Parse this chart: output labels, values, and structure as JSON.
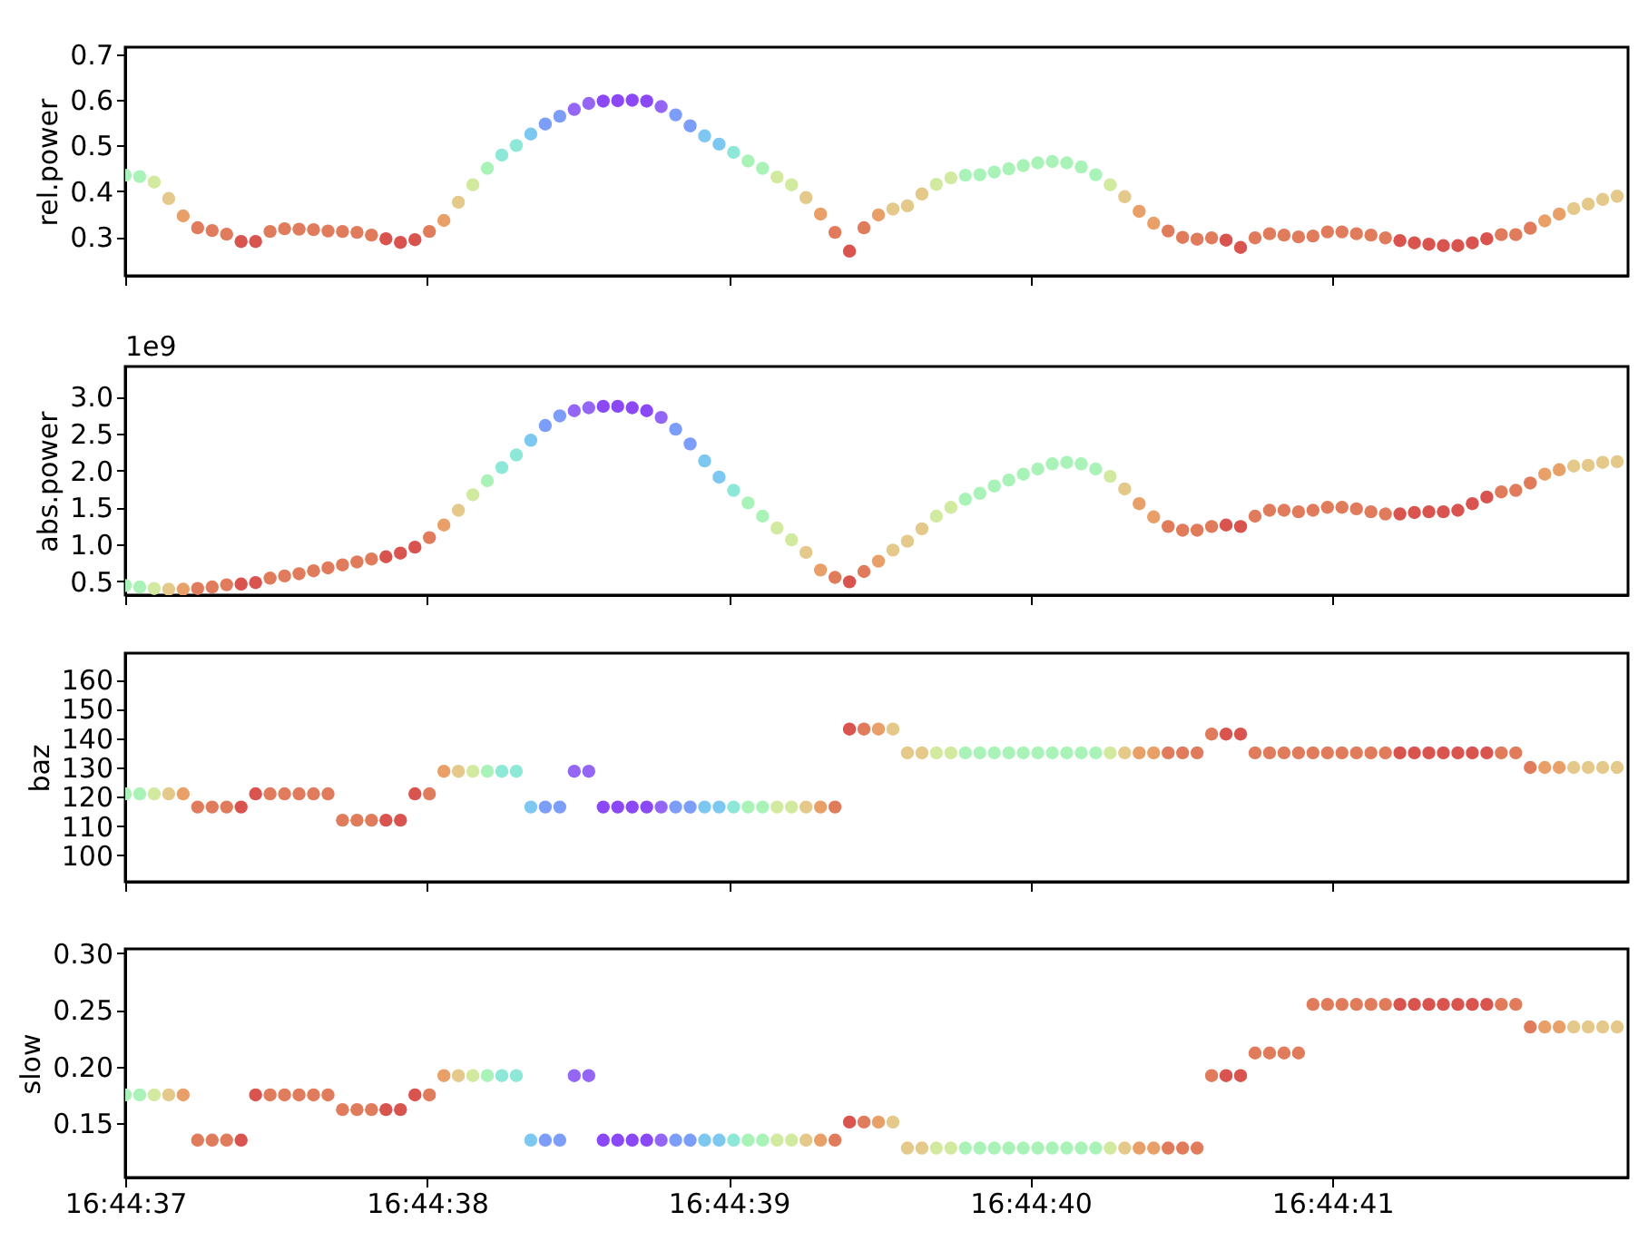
{
  "chart_data": [
    {
      "type": "scatter",
      "ylabel": "rel.power",
      "marker": "circle",
      "tick_labels": "y",
      "xlim": [
        60277,
        60281.98
      ],
      "xticks": [
        {
          "value": 60277,
          "label": null
        },
        {
          "value": 60278,
          "label": null
        },
        {
          "value": 60279,
          "label": null
        },
        {
          "value": 60280,
          "label": null
        },
        {
          "value": 60281,
          "label": null
        }
      ],
      "ylim": [
        0.215,
        0.715
      ],
      "yticks": [
        0.3,
        0.4,
        0.5,
        0.6,
        0.7
      ],
      "x": [
        60277,
        60277.048,
        60277.096,
        60277.144,
        60277.192,
        60277.24,
        60277.288,
        60277.336,
        60277.384,
        60277.432,
        60277.48,
        60277.528,
        60277.576,
        60277.624,
        60277.672,
        60277.72,
        60277.768,
        60277.816,
        60277.864,
        60277.912,
        60277.96,
        60278.008,
        60278.056,
        60278.104,
        60278.152,
        60278.2,
        60278.248,
        60278.296,
        60278.344,
        60278.392,
        60278.44,
        60278.488,
        60278.536,
        60278.584,
        60278.632,
        60278.68,
        60278.728,
        60278.776,
        60278.824,
        60278.872,
        60278.92,
        60278.968,
        60279.016,
        60279.064,
        60279.112,
        60279.16,
        60279.208,
        60279.256,
        60279.304,
        60279.352,
        60279.4,
        60279.448,
        60279.496,
        60279.544,
        60279.592,
        60279.64,
        60279.688,
        60279.736,
        60279.784,
        60279.832,
        60279.88,
        60279.928,
        60279.976,
        60280.024,
        60280.072,
        60280.12,
        60280.168,
        60280.216,
        60280.264,
        60280.312,
        60280.36,
        60280.408,
        60280.456,
        60280.504,
        60280.552,
        60280.6,
        60280.648,
        60280.696,
        60280.744,
        60280.792,
        60280.84,
        60280.888,
        60280.936,
        60280.984,
        60281.032,
        60281.08,
        60281.128,
        60281.176,
        60281.224,
        60281.272,
        60281.32,
        60281.368,
        60281.416,
        60281.464,
        60281.512,
        60281.56,
        60281.608,
        60281.656,
        60281.704,
        60281.752,
        60281.8,
        60281.848,
        60281.896,
        60281.944
      ],
      "series": [
        {
          "values": [
            0.435,
            0.432,
            0.42,
            0.384,
            0.346,
            0.32,
            0.314,
            0.306,
            0.29,
            0.29,
            0.312,
            0.318,
            0.317,
            0.316,
            0.313,
            0.312,
            0.31,
            0.304,
            0.296,
            0.288,
            0.294,
            0.312,
            0.336,
            0.376,
            0.414,
            0.45,
            0.479,
            0.5,
            0.525,
            0.547,
            0.564,
            0.579,
            0.592,
            0.597,
            0.598,
            0.599,
            0.597,
            0.585,
            0.567,
            0.543,
            0.521,
            0.503,
            0.485,
            0.466,
            0.45,
            0.431,
            0.414,
            0.386,
            0.35,
            0.31,
            0.269,
            0.32,
            0.348,
            0.361,
            0.368,
            0.394,
            0.415,
            0.429,
            0.435,
            0.436,
            0.442,
            0.449,
            0.456,
            0.462,
            0.465,
            0.462,
            0.453,
            0.436,
            0.414,
            0.388,
            0.356,
            0.33,
            0.313,
            0.299,
            0.295,
            0.298,
            0.293,
            0.277,
            0.298,
            0.307,
            0.304,
            0.3,
            0.302,
            0.311,
            0.311,
            0.307,
            0.304,
            0.298,
            0.292,
            0.287,
            0.284,
            0.281,
            0.281,
            0.287,
            0.296,
            0.305,
            0.305,
            0.319,
            0.335,
            0.35,
            0.362,
            0.372,
            0.382,
            0.389
          ]
        }
      ],
      "colors": [
        "#aaf3b8",
        "#aaf3b8",
        "#d2eaa0",
        "#e5c98a",
        "#e8a068",
        "#e07b5c",
        "#e07b5c",
        "#e07b5c",
        "#d9534f",
        "#d9534f",
        "#e07b5c",
        "#e07b5c",
        "#e07b5c",
        "#e07b5c",
        "#e07b5c",
        "#e07b5c",
        "#e07b5c",
        "#e07b5c",
        "#d9534f",
        "#d9534f",
        "#d9534f",
        "#e07b5c",
        "#e8a068",
        "#e5c98a",
        "#d2eaa0",
        "#aaf3b8",
        "#8ee8d8",
        "#8ee8d8",
        "#7cc8f0",
        "#7c9ef8",
        "#7c9ef8",
        "#9466f6",
        "#9466f6",
        "#8a48f6",
        "#8a48f6",
        "#8a48f6",
        "#8a48f6",
        "#9466f6",
        "#7c9ef8",
        "#7c9ef8",
        "#7cc8f0",
        "#7cc8f0",
        "#8ee8d8",
        "#aaf3b8",
        "#aaf3b8",
        "#d2eaa0",
        "#d2eaa0",
        "#e5c98a",
        "#e8a068",
        "#e07b5c",
        "#d9534f",
        "#e07b5c",
        "#e8a068",
        "#e5c98a",
        "#e5c98a",
        "#e5c98a",
        "#d2eaa0",
        "#d2eaa0",
        "#aaf3b8",
        "#aaf3b8",
        "#aaf3b8",
        "#aaf3b8",
        "#aaf3b8",
        "#aaf3b8",
        "#aaf3b8",
        "#aaf3b8",
        "#aaf3b8",
        "#aaf3b8",
        "#d2eaa0",
        "#e5c98a",
        "#e8a068",
        "#e8a068",
        "#e07b5c",
        "#e07b5c",
        "#e07b5c",
        "#e07b5c",
        "#d9534f",
        "#d9534f",
        "#e07b5c",
        "#e07b5c",
        "#e07b5c",
        "#e07b5c",
        "#e07b5c",
        "#e07b5c",
        "#e07b5c",
        "#e07b5c",
        "#e07b5c",
        "#e07b5c",
        "#d9534f",
        "#d9534f",
        "#d9534f",
        "#d9534f",
        "#d9534f",
        "#d9534f",
        "#d9534f",
        "#e07b5c",
        "#e07b5c",
        "#e07b5c",
        "#e8a068",
        "#e8a068",
        "#e5c98a",
        "#e5c98a",
        "#e5c98a",
        "#e5c98a"
      ]
    },
    {
      "type": "scatter",
      "ylabel": "abs.power",
      "annotations": [
        "1e9"
      ],
      "marker": "circle",
      "tick_labels": "y",
      "xlim": [
        60277,
        60281.98
      ],
      "xticks": [
        {
          "value": 60277,
          "label": null
        },
        {
          "value": 60278,
          "label": null
        },
        {
          "value": 60279,
          "label": null
        },
        {
          "value": 60280,
          "label": null
        },
        {
          "value": 60281,
          "label": null
        }
      ],
      "ylim": [
        0.31,
        3.41
      ],
      "yticks": [
        0.5,
        {
          "value": 1,
          "label": "1.0"
        },
        1.5,
        {
          "value": 2,
          "label": "2.0"
        },
        2.5,
        {
          "value": 3,
          "label": "3.0"
        }
      ],
      "x": [
        60277,
        60277.048,
        60277.096,
        60277.144,
        60277.192,
        60277.24,
        60277.288,
        60277.336,
        60277.384,
        60277.432,
        60277.48,
        60277.528,
        60277.576,
        60277.624,
        60277.672,
        60277.72,
        60277.768,
        60277.816,
        60277.864,
        60277.912,
        60277.96,
        60278.008,
        60278.056,
        60278.104,
        60278.152,
        60278.2,
        60278.248,
        60278.296,
        60278.344,
        60278.392,
        60278.44,
        60278.488,
        60278.536,
        60278.584,
        60278.632,
        60278.68,
        60278.728,
        60278.776,
        60278.824,
        60278.872,
        60278.92,
        60278.968,
        60279.016,
        60279.064,
        60279.112,
        60279.16,
        60279.208,
        60279.256,
        60279.304,
        60279.352,
        60279.4,
        60279.448,
        60279.496,
        60279.544,
        60279.592,
        60279.64,
        60279.688,
        60279.736,
        60279.784,
        60279.832,
        60279.88,
        60279.928,
        60279.976,
        60280.024,
        60280.072,
        60280.12,
        60280.168,
        60280.216,
        60280.264,
        60280.312,
        60280.36,
        60280.408,
        60280.456,
        60280.504,
        60280.552,
        60280.6,
        60280.648,
        60280.696,
        60280.744,
        60280.792,
        60280.84,
        60280.888,
        60280.936,
        60280.984,
        60281.032,
        60281.08,
        60281.128,
        60281.176,
        60281.224,
        60281.272,
        60281.32,
        60281.368,
        60281.416,
        60281.464,
        60281.512,
        60281.56,
        60281.608,
        60281.656,
        60281.704,
        60281.752,
        60281.8,
        60281.848,
        60281.896,
        60281.944
      ],
      "series": [
        {
          "values": [
            0.44,
            0.42,
            0.4,
            0.39,
            0.39,
            0.4,
            0.42,
            0.45,
            0.46,
            0.48,
            0.54,
            0.57,
            0.6,
            0.64,
            0.68,
            0.72,
            0.76,
            0.8,
            0.83,
            0.88,
            0.96,
            1.09,
            1.26,
            1.46,
            1.67,
            1.86,
            2.04,
            2.21,
            2.41,
            2.61,
            2.74,
            2.81,
            2.85,
            2.87,
            2.87,
            2.85,
            2.81,
            2.72,
            2.56,
            2.36,
            2.13,
            1.91,
            1.73,
            1.56,
            1.38,
            1.22,
            1.06,
            0.89,
            0.65,
            0.55,
            0.49,
            0.63,
            0.77,
            0.92,
            1.04,
            1.21,
            1.38,
            1.5,
            1.61,
            1.69,
            1.79,
            1.87,
            1.95,
            2.02,
            2.09,
            2.11,
            2.09,
            2.02,
            1.92,
            1.75,
            1.55,
            1.37,
            1.24,
            1.19,
            1.19,
            1.24,
            1.26,
            1.24,
            1.38,
            1.46,
            1.46,
            1.44,
            1.46,
            1.5,
            1.5,
            1.48,
            1.44,
            1.41,
            1.41,
            1.43,
            1.44,
            1.44,
            1.46,
            1.55,
            1.64,
            1.71,
            1.73,
            1.83,
            1.95,
            2.01,
            2.06,
            2.07,
            2.11,
            2.12
          ]
        }
      ],
      "colors": [
        "#aaf3b8",
        "#aaf3b8",
        "#d2eaa0",
        "#e5c98a",
        "#e8a068",
        "#e07b5c",
        "#e07b5c",
        "#e07b5c",
        "#d9534f",
        "#d9534f",
        "#e07b5c",
        "#e07b5c",
        "#e07b5c",
        "#e07b5c",
        "#e07b5c",
        "#e07b5c",
        "#e07b5c",
        "#e07b5c",
        "#d9534f",
        "#d9534f",
        "#d9534f",
        "#e07b5c",
        "#e8a068",
        "#e5c98a",
        "#d2eaa0",
        "#aaf3b8",
        "#8ee8d8",
        "#8ee8d8",
        "#7cc8f0",
        "#7c9ef8",
        "#7c9ef8",
        "#9466f6",
        "#9466f6",
        "#8a48f6",
        "#8a48f6",
        "#8a48f6",
        "#8a48f6",
        "#9466f6",
        "#7c9ef8",
        "#7c9ef8",
        "#7cc8f0",
        "#7cc8f0",
        "#8ee8d8",
        "#aaf3b8",
        "#aaf3b8",
        "#d2eaa0",
        "#d2eaa0",
        "#e5c98a",
        "#e8a068",
        "#e07b5c",
        "#d9534f",
        "#e07b5c",
        "#e8a068",
        "#e5c98a",
        "#e5c98a",
        "#e5c98a",
        "#d2eaa0",
        "#d2eaa0",
        "#aaf3b8",
        "#aaf3b8",
        "#aaf3b8",
        "#aaf3b8",
        "#aaf3b8",
        "#aaf3b8",
        "#aaf3b8",
        "#aaf3b8",
        "#aaf3b8",
        "#aaf3b8",
        "#d2eaa0",
        "#e5c98a",
        "#e8a068",
        "#e8a068",
        "#e07b5c",
        "#e07b5c",
        "#e07b5c",
        "#e07b5c",
        "#d9534f",
        "#d9534f",
        "#e07b5c",
        "#e07b5c",
        "#e07b5c",
        "#e07b5c",
        "#e07b5c",
        "#e07b5c",
        "#e07b5c",
        "#e07b5c",
        "#e07b5c",
        "#e07b5c",
        "#d9534f",
        "#d9534f",
        "#d9534f",
        "#d9534f",
        "#d9534f",
        "#d9534f",
        "#d9534f",
        "#e07b5c",
        "#e07b5c",
        "#e07b5c",
        "#e8a068",
        "#e8a068",
        "#e5c98a",
        "#e5c98a",
        "#e5c98a",
        "#e5c98a"
      ]
    },
    {
      "type": "scatter",
      "ylabel": "baz",
      "marker": "circle",
      "tick_labels": "y",
      "xlim": [
        60277,
        60281.98
      ],
      "xticks": [
        {
          "value": 60277,
          "label": null
        },
        {
          "value": 60278,
          "label": null
        },
        {
          "value": 60279,
          "label": null
        },
        {
          "value": 60280,
          "label": null
        },
        {
          "value": 60281,
          "label": null
        }
      ],
      "ylim": [
        91,
        169
      ],
      "yticks": [
        100,
        110,
        120,
        130,
        140,
        150,
        160
      ],
      "x": [
        60277,
        60277.048,
        60277.096,
        60277.144,
        60277.192,
        60277.24,
        60277.288,
        60277.336,
        60277.384,
        60277.432,
        60277.48,
        60277.528,
        60277.576,
        60277.624,
        60277.672,
        60277.72,
        60277.768,
        60277.816,
        60277.864,
        60277.912,
        60277.96,
        60278.008,
        60278.056,
        60278.104,
        60278.152,
        60278.2,
        60278.248,
        60278.296,
        60278.344,
        60278.392,
        60278.44,
        60278.488,
        60278.536,
        60278.584,
        60278.632,
        60278.68,
        60278.728,
        60278.776,
        60278.824,
        60278.872,
        60278.92,
        60278.968,
        60279.016,
        60279.064,
        60279.112,
        60279.16,
        60279.208,
        60279.256,
        60279.304,
        60279.352,
        60279.4,
        60279.448,
        60279.496,
        60279.544,
        60279.592,
        60279.64,
        60279.688,
        60279.736,
        60279.784,
        60279.832,
        60279.88,
        60279.928,
        60279.976,
        60280.024,
        60280.072,
        60280.12,
        60280.168,
        60280.216,
        60280.264,
        60280.312,
        60280.36,
        60280.408,
        60280.456,
        60280.504,
        60280.552,
        60280.6,
        60280.648,
        60280.696,
        60280.744,
        60280.792,
        60280.84,
        60280.888,
        60280.936,
        60280.984,
        60281.032,
        60281.08,
        60281.128,
        60281.176,
        60281.224,
        60281.272,
        60281.32,
        60281.368,
        60281.416,
        60281.464,
        60281.512,
        60281.56,
        60281.608,
        60281.656,
        60281.704,
        60281.752,
        60281.8,
        60281.848,
        60281.896,
        60281.944
      ],
      "series": [
        {
          "values": [
            121,
            121,
            121,
            121,
            121,
            116.5,
            116.5,
            116.5,
            116.5,
            121,
            121,
            121,
            121,
            121,
            121,
            112,
            112,
            112,
            112,
            112,
            121,
            121,
            128.7,
            128.7,
            128.7,
            128.7,
            128.7,
            128.7,
            116.5,
            116.5,
            116.5,
            128.7,
            128.7,
            116.5,
            116.5,
            116.5,
            116.5,
            116.5,
            116.5,
            116.5,
            116.5,
            116.5,
            116.5,
            116.5,
            116.5,
            116.5,
            116.5,
            116.5,
            116.5,
            116.5,
            143.1,
            143.1,
            143.1,
            143.1,
            135,
            135,
            135,
            135,
            135,
            135,
            135,
            135,
            135,
            135,
            135,
            135,
            135,
            135,
            135,
            135,
            135,
            135,
            135,
            135,
            135,
            141.4,
            141.4,
            141.4,
            135,
            135,
            135,
            135,
            135,
            135,
            135,
            135,
            135,
            135,
            135,
            135,
            135,
            135,
            135,
            135,
            135,
            135,
            135,
            130,
            130,
            130,
            130,
            130,
            130,
            130
          ]
        }
      ],
      "colors": [
        "#aaf3b8",
        "#aaf3b8",
        "#d2eaa0",
        "#e5c98a",
        "#e8a068",
        "#e07b5c",
        "#e07b5c",
        "#e07b5c",
        "#d9534f",
        "#d9534f",
        "#e07b5c",
        "#e07b5c",
        "#e07b5c",
        "#e07b5c",
        "#e07b5c",
        "#e07b5c",
        "#e07b5c",
        "#e07b5c",
        "#d9534f",
        "#d9534f",
        "#d9534f",
        "#e07b5c",
        "#e8a068",
        "#e5c98a",
        "#d2eaa0",
        "#aaf3b8",
        "#8ee8d8",
        "#8ee8d8",
        "#7cc8f0",
        "#7c9ef8",
        "#7c9ef8",
        "#9466f6",
        "#9466f6",
        "#8a48f6",
        "#8a48f6",
        "#8a48f6",
        "#8a48f6",
        "#9466f6",
        "#7c9ef8",
        "#7c9ef8",
        "#7cc8f0",
        "#7cc8f0",
        "#8ee8d8",
        "#aaf3b8",
        "#aaf3b8",
        "#d2eaa0",
        "#d2eaa0",
        "#e5c98a",
        "#e8a068",
        "#e07b5c",
        "#d9534f",
        "#e07b5c",
        "#e8a068",
        "#e5c98a",
        "#e5c98a",
        "#e5c98a",
        "#d2eaa0",
        "#d2eaa0",
        "#aaf3b8",
        "#aaf3b8",
        "#aaf3b8",
        "#aaf3b8",
        "#aaf3b8",
        "#aaf3b8",
        "#aaf3b8",
        "#aaf3b8",
        "#aaf3b8",
        "#aaf3b8",
        "#d2eaa0",
        "#e5c98a",
        "#e8a068",
        "#e8a068",
        "#e07b5c",
        "#e07b5c",
        "#e07b5c",
        "#e07b5c",
        "#d9534f",
        "#d9534f",
        "#e07b5c",
        "#e07b5c",
        "#e07b5c",
        "#e07b5c",
        "#e07b5c",
        "#e07b5c",
        "#e07b5c",
        "#e07b5c",
        "#e07b5c",
        "#e07b5c",
        "#d9534f",
        "#d9534f",
        "#d9534f",
        "#d9534f",
        "#d9534f",
        "#d9534f",
        "#d9534f",
        "#e07b5c",
        "#e07b5c",
        "#e07b5c",
        "#e8a068",
        "#e8a068",
        "#e5c98a",
        "#e5c98a",
        "#e5c98a",
        "#e5c98a"
      ]
    },
    {
      "type": "scatter",
      "ylabel": "slow",
      "marker": "circle",
      "xlim": [
        60277,
        60281.98
      ],
      "xticks": [
        {
          "value": 60277,
          "label": "16:44:37"
        },
        {
          "value": 60278,
          "label": "16:44:38"
        },
        {
          "value": 60279,
          "label": "16:44:39"
        },
        {
          "value": 60280,
          "label": "16:44:40"
        },
        {
          "value": 60281,
          "label": "16:44:41"
        }
      ],
      "ylim": [
        0.102,
        0.304
      ],
      "yticks": [
        0.15,
        {
          "value": 0.2,
          "label": "0.20"
        },
        0.25,
        {
          "value": 0.3,
          "label": "0.30"
        }
      ],
      "x": [
        60277,
        60277.048,
        60277.096,
        60277.144,
        60277.192,
        60277.24,
        60277.288,
        60277.336,
        60277.384,
        60277.432,
        60277.48,
        60277.528,
        60277.576,
        60277.624,
        60277.672,
        60277.72,
        60277.768,
        60277.816,
        60277.864,
        60277.912,
        60277.96,
        60278.008,
        60278.056,
        60278.104,
        60278.152,
        60278.2,
        60278.248,
        60278.296,
        60278.344,
        60278.392,
        60278.44,
        60278.488,
        60278.536,
        60278.584,
        60278.632,
        60278.68,
        60278.728,
        60278.776,
        60278.824,
        60278.872,
        60278.92,
        60278.968,
        60279.016,
        60279.064,
        60279.112,
        60279.16,
        60279.208,
        60279.256,
        60279.304,
        60279.352,
        60279.4,
        60279.448,
        60279.496,
        60279.544,
        60279.592,
        60279.64,
        60279.688,
        60279.736,
        60279.784,
        60279.832,
        60279.88,
        60279.928,
        60279.976,
        60280.024,
        60280.072,
        60280.12,
        60280.168,
        60280.216,
        60280.264,
        60280.312,
        60280.36,
        60280.408,
        60280.456,
        60280.504,
        60280.552,
        60280.6,
        60280.648,
        60280.696,
        60280.744,
        60280.792,
        60280.84,
        60280.888,
        60280.936,
        60280.984,
        60281.032,
        60281.08,
        60281.128,
        60281.176,
        60281.224,
        60281.272,
        60281.32,
        60281.368,
        60281.416,
        60281.464,
        60281.512,
        60281.56,
        60281.608,
        60281.656,
        60281.704,
        60281.752,
        60281.8,
        60281.848,
        60281.896,
        60281.944
      ],
      "series": [
        {
          "values": [
            0.175,
            0.175,
            0.175,
            0.175,
            0.175,
            0.135,
            0.135,
            0.135,
            0.135,
            0.175,
            0.175,
            0.175,
            0.175,
            0.175,
            0.175,
            0.162,
            0.162,
            0.162,
            0.162,
            0.162,
            0.175,
            0.175,
            0.192,
            0.192,
            0.192,
            0.192,
            0.192,
            0.192,
            0.135,
            0.135,
            0.135,
            0.192,
            0.192,
            0.135,
            0.135,
            0.135,
            0.135,
            0.135,
            0.135,
            0.135,
            0.135,
            0.135,
            0.135,
            0.135,
            0.135,
            0.135,
            0.135,
            0.135,
            0.135,
            0.135,
            0.151,
            0.151,
            0.151,
            0.151,
            0.128,
            0.128,
            0.128,
            0.128,
            0.128,
            0.128,
            0.128,
            0.128,
            0.128,
            0.128,
            0.128,
            0.128,
            0.128,
            0.128,
            0.128,
            0.128,
            0.128,
            0.128,
            0.128,
            0.128,
            0.128,
            0.192,
            0.192,
            0.192,
            0.212,
            0.212,
            0.212,
            0.212,
            0.255,
            0.255,
            0.255,
            0.255,
            0.255,
            0.255,
            0.255,
            0.255,
            0.255,
            0.255,
            0.255,
            0.255,
            0.255,
            0.255,
            0.255,
            0.235,
            0.235,
            0.235,
            0.235,
            0.235,
            0.235,
            0.235
          ]
        }
      ],
      "colors": [
        "#aaf3b8",
        "#aaf3b8",
        "#d2eaa0",
        "#e5c98a",
        "#e8a068",
        "#e07b5c",
        "#e07b5c",
        "#e07b5c",
        "#d9534f",
        "#d9534f",
        "#e07b5c",
        "#e07b5c",
        "#e07b5c",
        "#e07b5c",
        "#e07b5c",
        "#e07b5c",
        "#e07b5c",
        "#e07b5c",
        "#d9534f",
        "#d9534f",
        "#d9534f",
        "#e07b5c",
        "#e8a068",
        "#e5c98a",
        "#d2eaa0",
        "#aaf3b8",
        "#8ee8d8",
        "#8ee8d8",
        "#7cc8f0",
        "#7c9ef8",
        "#7c9ef8",
        "#9466f6",
        "#9466f6",
        "#8a48f6",
        "#8a48f6",
        "#8a48f6",
        "#8a48f6",
        "#9466f6",
        "#7c9ef8",
        "#7c9ef8",
        "#7cc8f0",
        "#7cc8f0",
        "#8ee8d8",
        "#aaf3b8",
        "#aaf3b8",
        "#d2eaa0",
        "#d2eaa0",
        "#e5c98a",
        "#e8a068",
        "#e07b5c",
        "#d9534f",
        "#e07b5c",
        "#e8a068",
        "#e5c98a",
        "#e5c98a",
        "#e5c98a",
        "#d2eaa0",
        "#d2eaa0",
        "#aaf3b8",
        "#aaf3b8",
        "#aaf3b8",
        "#aaf3b8",
        "#aaf3b8",
        "#aaf3b8",
        "#aaf3b8",
        "#aaf3b8",
        "#aaf3b8",
        "#aaf3b8",
        "#d2eaa0",
        "#e5c98a",
        "#e8a068",
        "#e8a068",
        "#e07b5c",
        "#e07b5c",
        "#e07b5c",
        "#e07b5c",
        "#d9534f",
        "#d9534f",
        "#e07b5c",
        "#e07b5c",
        "#e07b5c",
        "#e07b5c",
        "#e07b5c",
        "#e07b5c",
        "#e07b5c",
        "#e07b5c",
        "#e07b5c",
        "#e07b5c",
        "#d9534f",
        "#d9534f",
        "#d9534f",
        "#d9534f",
        "#d9534f",
        "#d9534f",
        "#d9534f",
        "#e07b5c",
        "#e07b5c",
        "#e07b5c",
        "#e8a068",
        "#e8a068",
        "#e5c98a",
        "#e5c98a",
        "#e5c98a",
        "#e5c98a"
      ]
    }
  ]
}
